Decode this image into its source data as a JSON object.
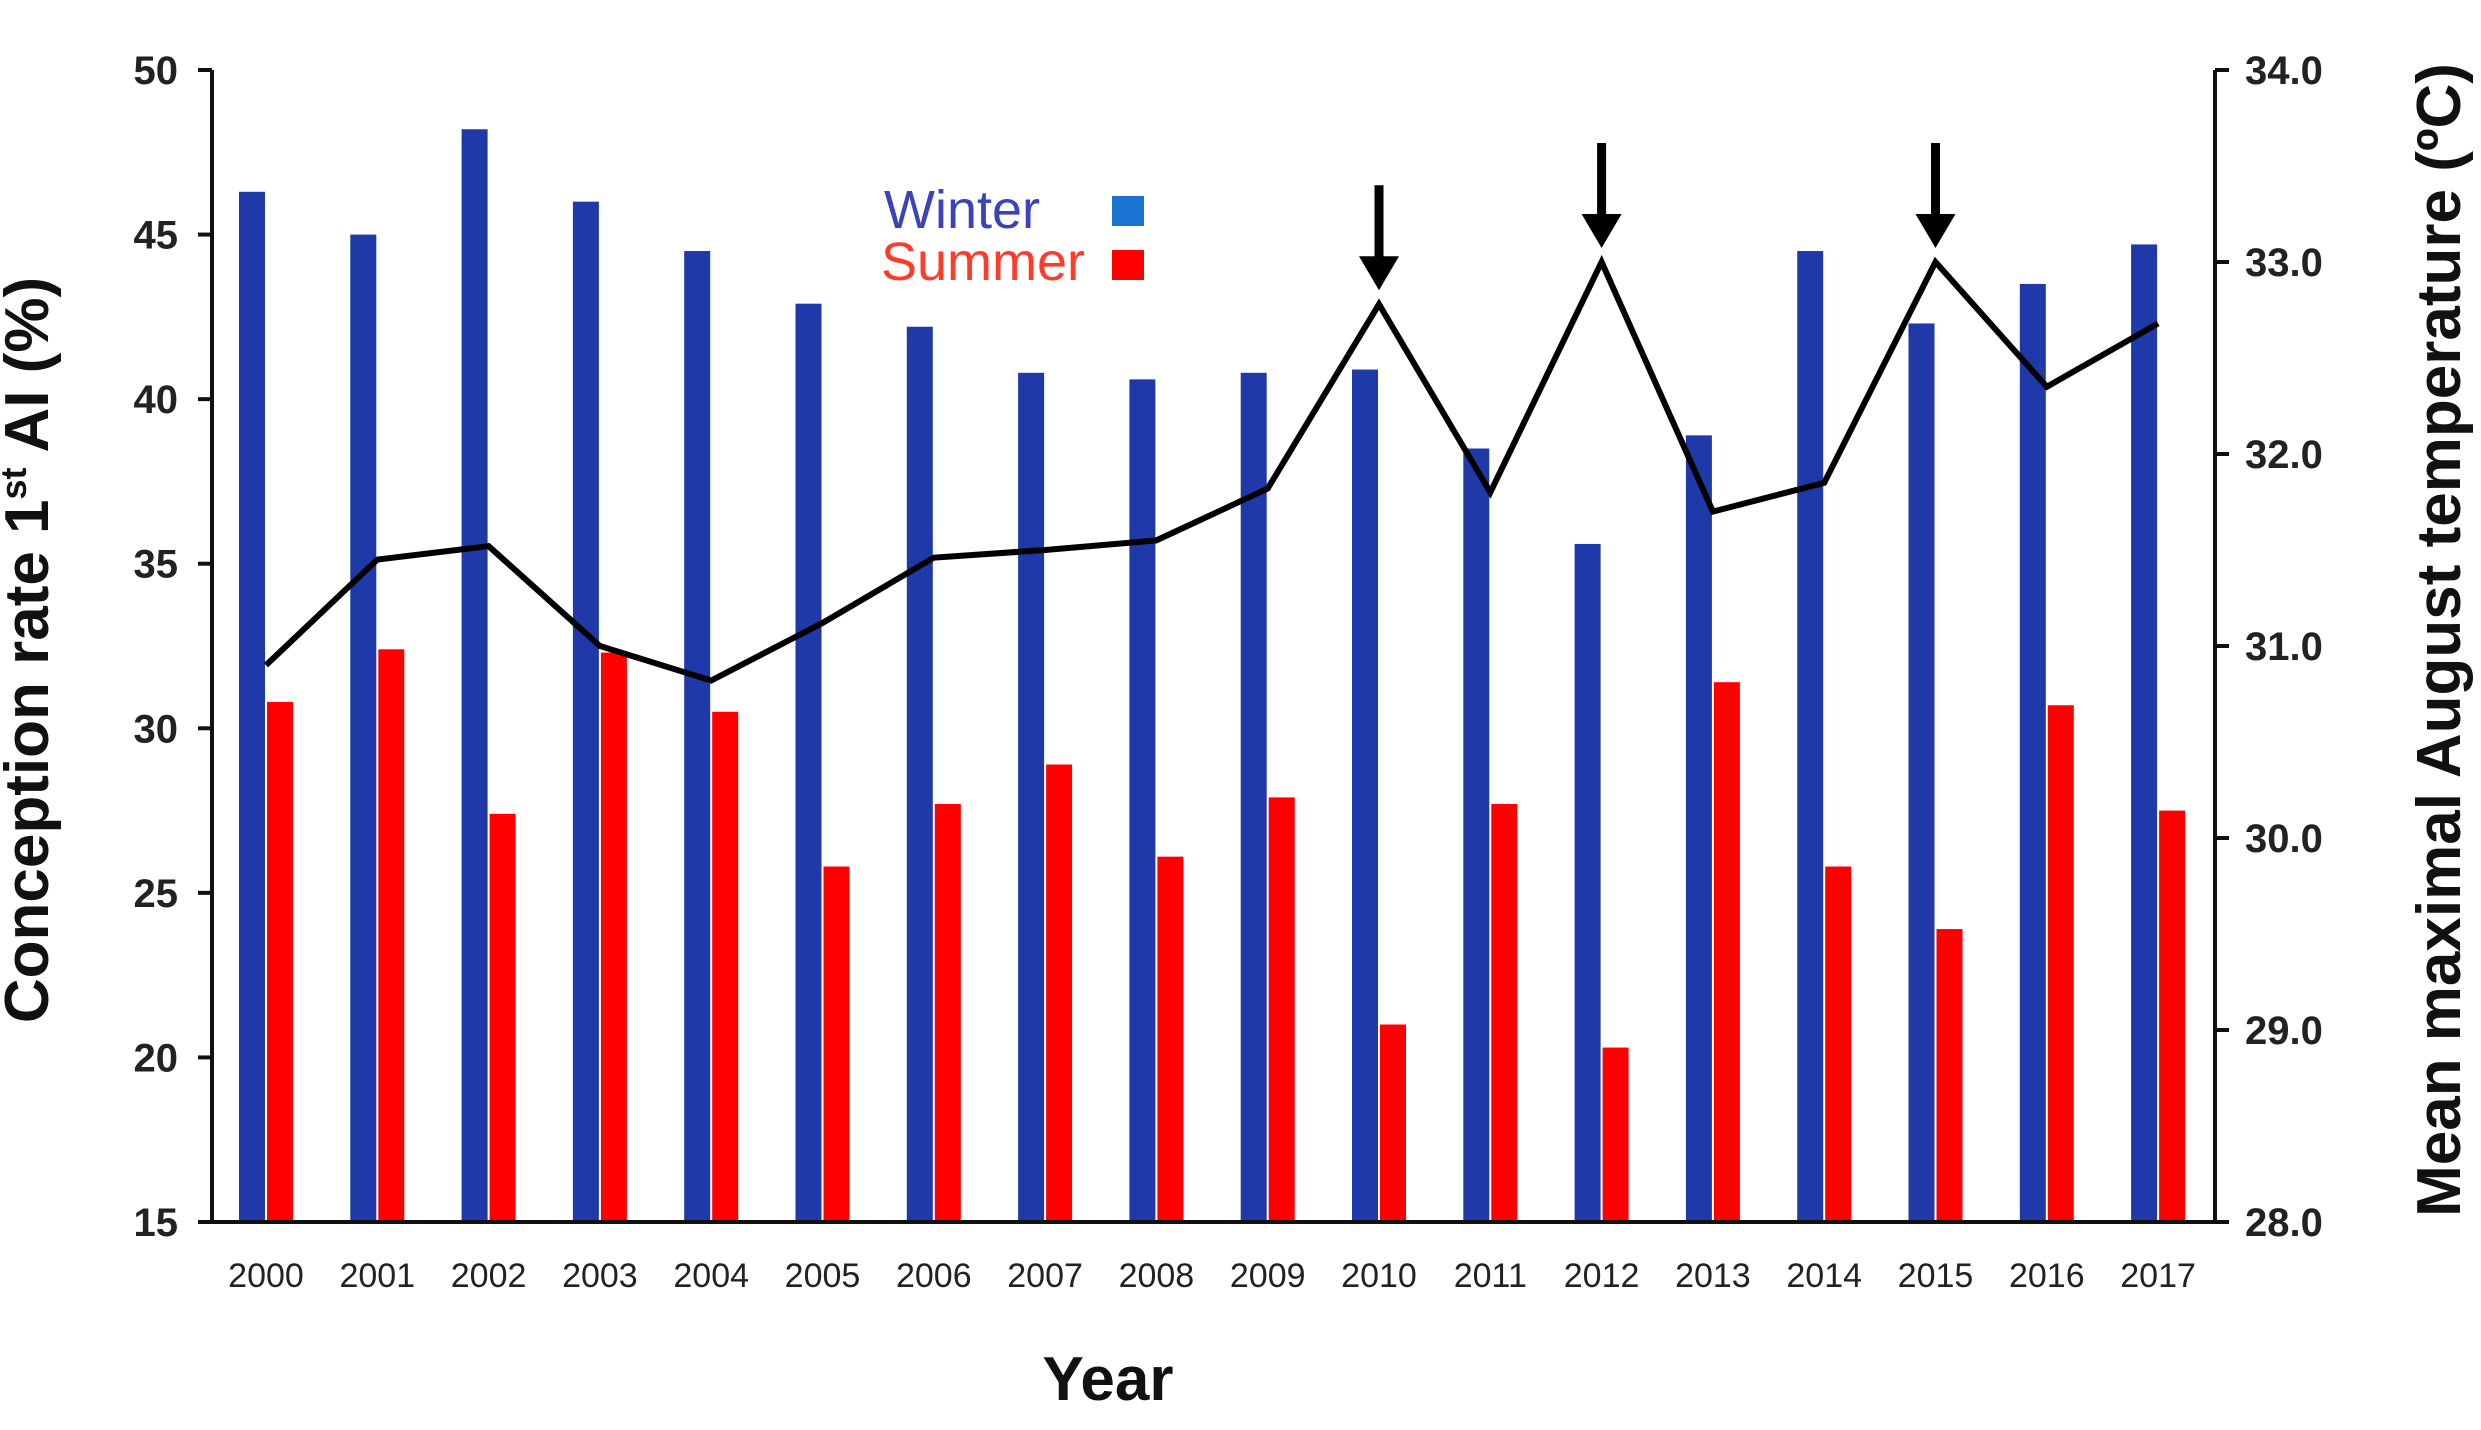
{
  "chart_data": {
    "type": "bar",
    "title": "",
    "xlabel": "Year",
    "ylabel": "Conception rate 1st AI (%)",
    "ylabel_parts": {
      "pre": "Conception rate 1",
      "sup": "st",
      "post": " AI (%)"
    },
    "y2label": "Mean maximal  August temperature (ºC)",
    "ylim": [
      15,
      50
    ],
    "y2lim": [
      28.0,
      34.0
    ],
    "yticks": [
      "15",
      "20",
      "25",
      "30",
      "35",
      "40",
      "45",
      "50"
    ],
    "y2ticks": [
      "28.0",
      "29.0",
      "30.0",
      "31.0",
      "32.0",
      "33.0",
      "34.0"
    ],
    "categories": [
      "2000",
      "2001",
      "2002",
      "2003",
      "2004",
      "2005",
      "2006",
      "2007",
      "2008",
      "2009",
      "2010",
      "2011",
      "2012",
      "2013",
      "2014",
      "2015",
      "2016",
      "2017"
    ],
    "series": [
      {
        "name": "Winter",
        "type": "bar",
        "axis": "left",
        "color": "#1f3aa8",
        "values": [
          46.3,
          45.0,
          48.2,
          46.0,
          44.5,
          42.9,
          42.2,
          40.8,
          40.6,
          40.8,
          40.9,
          38.5,
          35.6,
          38.9,
          44.5,
          42.3,
          43.5,
          44.7
        ]
      },
      {
        "name": "Summer",
        "type": "bar",
        "axis": "left",
        "color": "#ff0000",
        "values": [
          30.8,
          32.4,
          27.4,
          32.3,
          30.5,
          25.8,
          27.7,
          28.9,
          26.1,
          27.9,
          21.0,
          27.7,
          20.3,
          31.4,
          25.8,
          23.9,
          30.7,
          27.5
        ]
      },
      {
        "type": "line",
        "axis": "right",
        "color": "#000000",
        "values": [
          30.9,
          31.45,
          31.52,
          31.0,
          30.82,
          31.12,
          31.46,
          31.5,
          31.55,
          31.82,
          32.78,
          31.8,
          33.0,
          31.7,
          31.85,
          33.0,
          32.35,
          32.68
        ]
      }
    ],
    "arrows_at": [
      "2010",
      "2012",
      "2015"
    ],
    "legend": {
      "position": "top-center",
      "winter_text_color": "#3a43b8",
      "summer_text_color": "#ff3b2a",
      "winter_swatch": "#1a73d0",
      "summer_swatch": "#ff0000"
    },
    "grid": false
  }
}
